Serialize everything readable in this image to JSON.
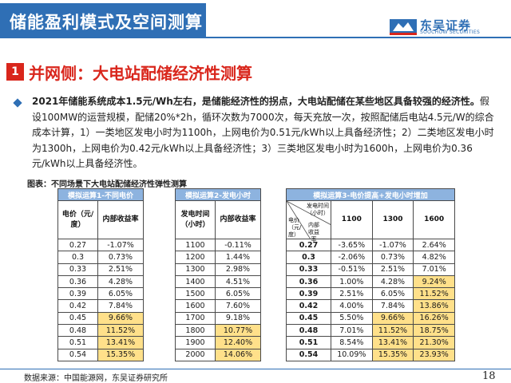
{
  "header": {
    "title": "储能盈利模式及空间测算",
    "logo_cn": "东吴证券",
    "logo_en": "SOOCHOW SECURITIES"
  },
  "section": {
    "number": "1",
    "title": "并网侧：大电站配储经济性测算"
  },
  "paragraph": {
    "bold": "2021年储能系统成本1.5元/Wh左右，是储能经济性的拐点，大电站配储在某些地区具备较强的经济性。",
    "text": "假设100MW的运营规模，配储20%*2h，循环次数为7000次，每天充放一次，按照配储后电站4.5元/W的综合成本计算，1）一类地区发电小时为1100h，上网电价为0.51元/kWh以上具备经济性；2）二类地区发电小时为1300h，上网电价为0.42元/kWh以上具备经济性；3）三类地区发电小时为1600h，上网电价为0.36元/kWh以上具备经济性。"
  },
  "table_caption": "图表：不同场景下大电站配储经济性弹性测算",
  "table1": {
    "title": "模拟运算1-不同电价",
    "col1": "电价（元/度）",
    "col2": "内部收益率",
    "rows": [
      [
        "0.27",
        "-1.07%"
      ],
      [
        "0.3",
        "0.73%"
      ],
      [
        "0.33",
        "2.51%"
      ],
      [
        "0.36",
        "4.28%"
      ],
      [
        "0.39",
        "6.05%"
      ],
      [
        "0.42",
        "7.84%"
      ],
      [
        "0.45",
        "9.66%"
      ],
      [
        "0.48",
        "11.52%"
      ],
      [
        "0.51",
        "13.41%"
      ],
      [
        "0.54",
        "15.35%"
      ]
    ]
  },
  "table2": {
    "title": "模拟运算2-发电小时",
    "col1": "发电时间（小时）",
    "col2": "内部收益率",
    "rows": [
      [
        "1100",
        "-0.11%"
      ],
      [
        "1200",
        "1.44%"
      ],
      [
        "1300",
        "2.98%"
      ],
      [
        "1400",
        "4.51%"
      ],
      [
        "1500",
        "6.05%"
      ],
      [
        "1600",
        "7.60%"
      ],
      [
        "1700",
        "9.18%"
      ],
      [
        "1800",
        "10.77%"
      ],
      [
        "1900",
        "12.40%"
      ],
      [
        "2000",
        "14.06%"
      ]
    ]
  },
  "table3": {
    "title": "模拟运算3-电价提高+发电小时增加",
    "diag_top": "发电时间（小时）",
    "diag_mid": "内部收益率",
    "diag_left": "电价（元/度）",
    "cols": [
      "1100",
      "1300",
      "1600"
    ],
    "rows": [
      [
        "0.27",
        "-3.65%",
        "-1.07%",
        "2.64%"
      ],
      [
        "0.3",
        "-2.06%",
        "0.73%",
        "4.82%"
      ],
      [
        "0.33",
        "-0.51%",
        "2.51%",
        "7.01%"
      ],
      [
        "0.36",
        "1.00%",
        "4.28%",
        "9.24%"
      ],
      [
        "0.39",
        "2.51%",
        "6.05%",
        "11.52%"
      ],
      [
        "0.42",
        "4.00%",
        "7.84%",
        "13.86%"
      ],
      [
        "0.45",
        "5.50%",
        "9.66%",
        "16.26%"
      ],
      [
        "0.48",
        "7.01%",
        "11.52%",
        "18.75%"
      ],
      [
        "0.51",
        "8.54%",
        "13.41%",
        "21.30%"
      ],
      [
        "0.54",
        "10.09%",
        "15.35%",
        "23.93%"
      ]
    ]
  },
  "footer": {
    "source": "数据来源：中国能源网，东吴证券研究所",
    "page": "18"
  },
  "colors": {
    "brand_blue": "#2f6fb5",
    "accent_red": "#d9261c",
    "highlight": "#ffe08a",
    "table_header": "#8db3df"
  }
}
